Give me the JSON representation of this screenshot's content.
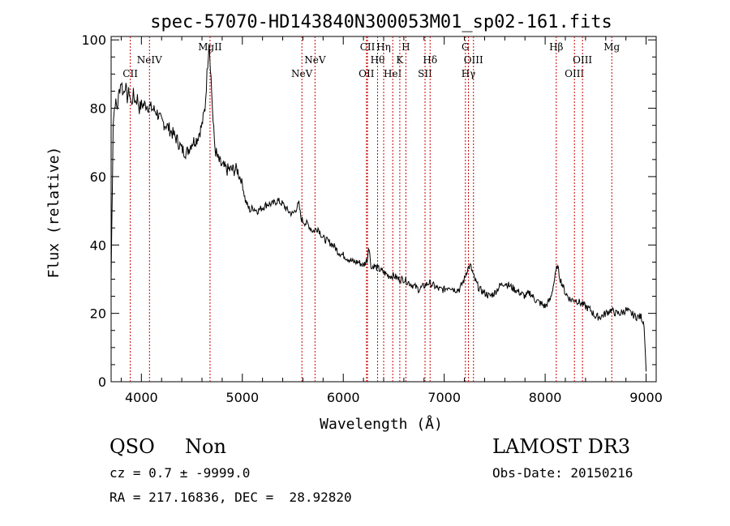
{
  "chart_data": {
    "type": "line",
    "title": "spec-57070-HD143840N300053M01_sp02-161.fits",
    "xlabel": "Wavelength (Å)",
    "ylabel": "Flux (relative)",
    "xlim": [
      3700,
      9100
    ],
    "ylim": [
      0,
      101
    ],
    "xticks": [
      4000,
      5000,
      6000,
      7000,
      8000,
      9000
    ],
    "yticks": [
      0,
      20,
      40,
      60,
      80,
      100
    ],
    "grid": false,
    "line_color": "#000000",
    "marker_color": "#cc0000",
    "series": [
      {
        "x": [
          3700,
          3720,
          3740,
          3760,
          3780,
          3800,
          3820,
          3840,
          3860,
          3880,
          3900,
          3920,
          3940,
          3960,
          3980,
          4000,
          4050,
          4100,
          4150,
          4200,
          4250,
          4300,
          4350,
          4400,
          4450,
          4500,
          4550,
          4600,
          4630,
          4650,
          4670,
          4690,
          4710,
          4730,
          4760,
          4800,
          4850,
          4900,
          4950,
          5000,
          5030,
          5060,
          5080,
          5100,
          5150,
          5200,
          5250,
          5300,
          5350,
          5400,
          5450,
          5500,
          5560,
          5580,
          5600,
          5650,
          5700,
          5750,
          5800,
          5850,
          5900,
          5950,
          6000,
          6050,
          6100,
          6150,
          6200,
          6240,
          6250,
          6280,
          6300,
          6350,
          6400,
          6450,
          6500,
          6550,
          6600,
          6650,
          6700,
          6750,
          6800,
          6850,
          6900,
          6950,
          7000,
          7050,
          7100,
          7150,
          7200,
          7230,
          7260,
          7300,
          7350,
          7400,
          7450,
          7500,
          7550,
          7600,
          7650,
          7700,
          7750,
          7800,
          7850,
          7900,
          7950,
          8000,
          8050,
          8080,
          8100,
          8120,
          8150,
          8200,
          8250,
          8300,
          8350,
          8400,
          8450,
          8500,
          8550,
          8600,
          8650,
          8700,
          8750,
          8800,
          8850,
          8900,
          8950,
          8980,
          9000
        ],
        "y": [
          30,
          76,
          82,
          80,
          85,
          88,
          84,
          87,
          83,
          85,
          81,
          84,
          82,
          83,
          80,
          81,
          81,
          80,
          79,
          76,
          75,
          73,
          71,
          68,
          67,
          70,
          71,
          75,
          80,
          90,
          100,
          89,
          76,
          68,
          65,
          63,
          62,
          62,
          62,
          58,
          53,
          51,
          50,
          51,
          50,
          51,
          52,
          52,
          53,
          52,
          50,
          49,
          52,
          48,
          47,
          46,
          44,
          45,
          42,
          41,
          40,
          38,
          37,
          36,
          35,
          35,
          34,
          36,
          40,
          33,
          34,
          33,
          32,
          31,
          31,
          30,
          30,
          29,
          28,
          27,
          28,
          29,
          28,
          27,
          27,
          28,
          27,
          27,
          30,
          33,
          34,
          30,
          27,
          26,
          25,
          26,
          28,
          29,
          28,
          27,
          26,
          25,
          26,
          24,
          23,
          22,
          24,
          28,
          31,
          34,
          30,
          26,
          24,
          24,
          23,
          22,
          21,
          19,
          19,
          20,
          21,
          20,
          20,
          21,
          20,
          19,
          19,
          17,
          3
        ]
      }
    ],
    "lines": [
      {
        "label": "CII",
        "wavelength": 3890,
        "row": 3
      },
      {
        "label": "NeIV",
        "wavelength": 4080,
        "row": 1
      },
      {
        "label": "MgII",
        "wavelength": 4680,
        "row": 0
      },
      {
        "label": "NeV",
        "wavelength": 5590,
        "row": 3
      },
      {
        "label": "NeV",
        "wavelength": 5720,
        "row": 1
      },
      {
        "label": "OII",
        "wavelength": 6230,
        "row": 3
      },
      {
        "label": "CII",
        "wavelength": 6240,
        "row": 0
      },
      {
        "label": "Hθ",
        "wavelength": 6340,
        "row": 2
      },
      {
        "label": "Hη",
        "wavelength": 6400,
        "row": 0
      },
      {
        "label": "HeI",
        "wavelength": 6490,
        "row": 3
      },
      {
        "label": "K",
        "wavelength": 6560,
        "row": 1
      },
      {
        "label": "H",
        "wavelength": 6620,
        "row": 0
      },
      {
        "label": "SII",
        "wavelength": 6810,
        "row": 3
      },
      {
        "label": "Hδ",
        "wavelength": 6860,
        "row": 1
      },
      {
        "label": "G",
        "wavelength": 7210,
        "row": 0
      },
      {
        "label": "Hγ",
        "wavelength": 7240,
        "row": 3
      },
      {
        "label": "OIII",
        "wavelength": 7290,
        "row": 1
      },
      {
        "label": "Hβ",
        "wavelength": 8110,
        "row": 0
      },
      {
        "label": "OIII",
        "wavelength": 8290,
        "row": 3
      },
      {
        "label": "OIII",
        "wavelength": 8370,
        "row": 1
      },
      {
        "label": "Mg",
        "wavelength": 8660,
        "row": 0
      }
    ]
  },
  "info": {
    "class": "QSO",
    "subclass": "Non",
    "survey": "LAMOST DR3",
    "cz": "cz = 0.7 ± -9999.0",
    "obs_date": "Obs-Date: 20150216",
    "radec": "RA = 217.16836, DEC =  28.92820"
  }
}
